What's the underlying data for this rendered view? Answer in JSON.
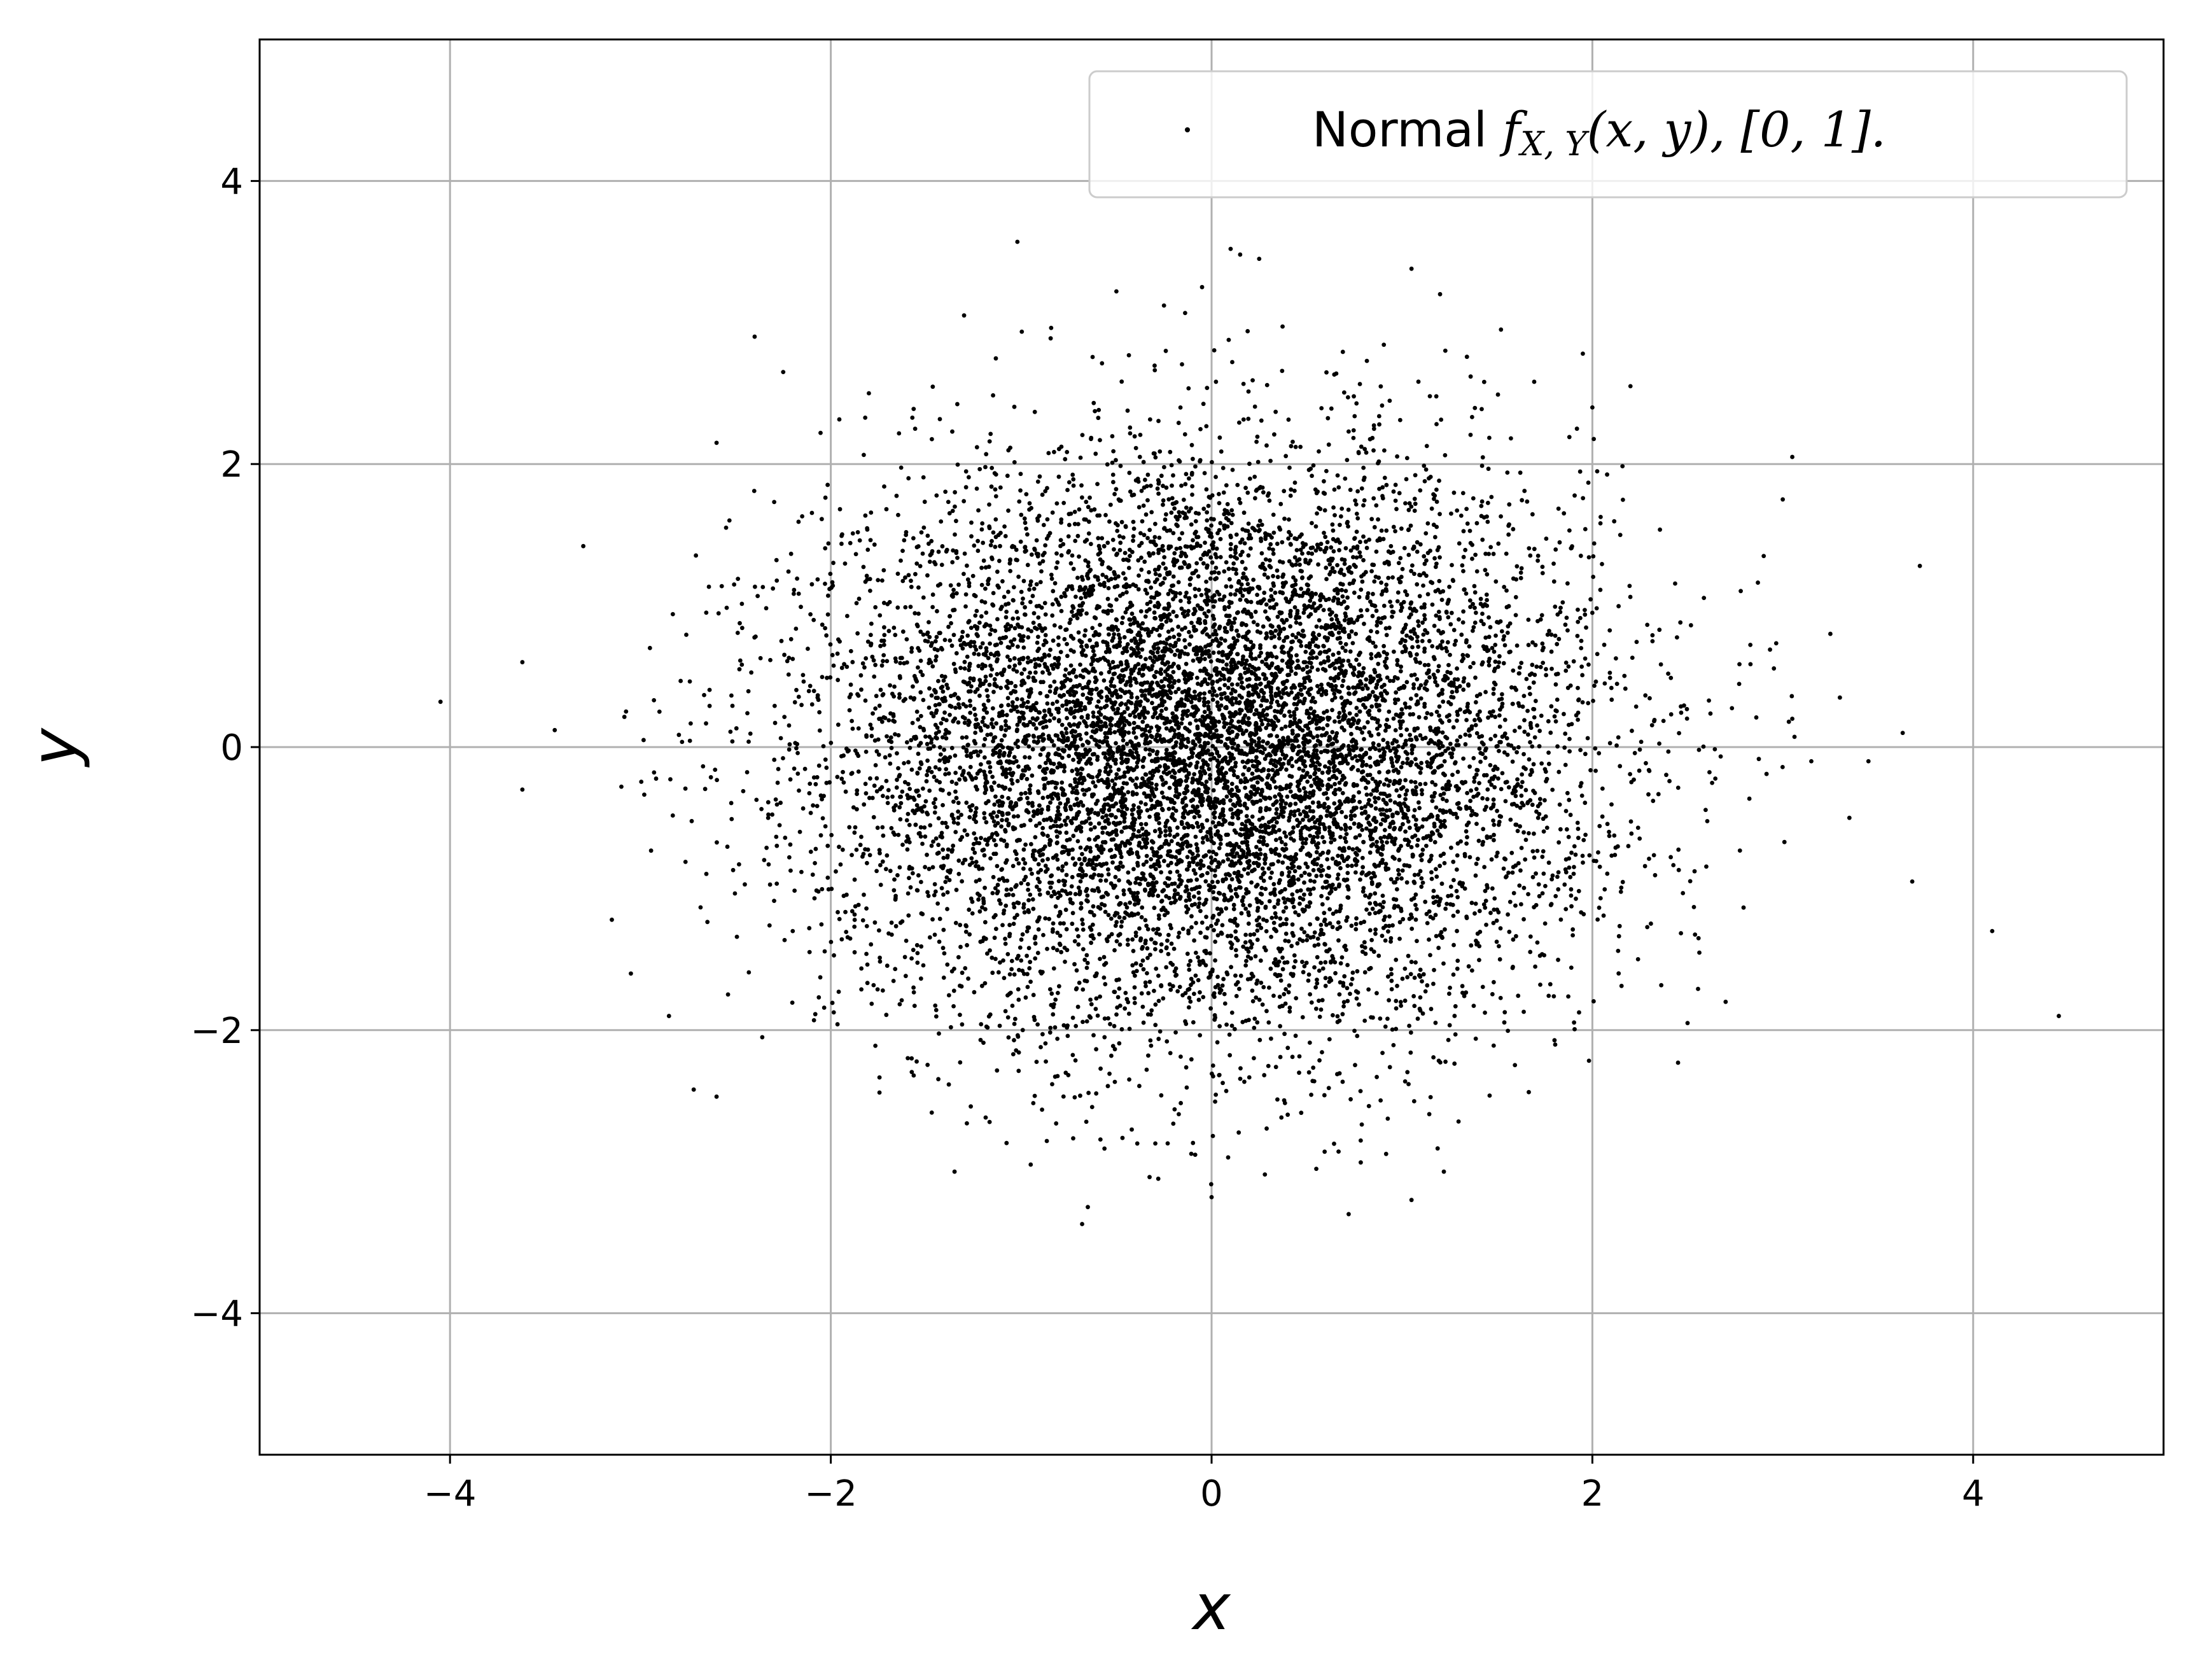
{
  "chart_data": {
    "type": "scatter",
    "title": "",
    "xlabel": "x",
    "ylabel": "y",
    "xlim": [
      -5,
      5
    ],
    "ylim": [
      -5,
      5
    ],
    "xticks": [
      -4,
      -2,
      0,
      2,
      4
    ],
    "yticks": [
      -4,
      -2,
      0,
      2,
      4
    ],
    "grid": true,
    "legend_position": "upper right",
    "series": [
      {
        "name": "Normal f_{X,Y}(x,y), [0,1].",
        "legend_prefix": "Normal ",
        "legend_math_f": "f",
        "legend_math_sub": "X, Y",
        "legend_math_rest": "(x, y), [0, 1].",
        "color": "#000000",
        "distribution": "bivariate normal",
        "mean": [
          0,
          0
        ],
        "std": [
          1,
          1
        ],
        "n_points": 10000,
        "points": [
          [
            -4.05,
            0.32
          ],
          [
            -3.62,
            -0.3
          ],
          [
            -3.62,
            0.6
          ],
          [
            -3.45,
            0.12
          ],
          [
            -3.3,
            1.42
          ],
          [
            -3.15,
            -1.22
          ],
          [
            -3.1,
            -0.28
          ],
          [
            -3.05,
            -1.6
          ],
          [
            -2.95,
            0.7
          ],
          [
            -2.9,
            0.25
          ],
          [
            -2.85,
            -1.9
          ],
          [
            -2.72,
            -2.42
          ],
          [
            -2.6,
            -2.47
          ],
          [
            -2.6,
            2.15
          ],
          [
            -2.55,
            1.55
          ],
          [
            -2.48,
            0.55
          ],
          [
            -2.4,
            2.9
          ],
          [
            -2.36,
            -2.05
          ],
          [
            -2.25,
            2.65
          ],
          [
            -2.2,
            -1.3
          ],
          [
            -1.8,
            2.5
          ],
          [
            -1.35,
            -3.0
          ],
          [
            -1.3,
            3.05
          ],
          [
            -1.02,
            3.57
          ],
          [
            -0.95,
            -2.95
          ],
          [
            -0.68,
            -3.37
          ],
          [
            -0.65,
            -3.25
          ],
          [
            -0.5,
            3.22
          ],
          [
            -0.28,
            -3.05
          ],
          [
            -0.25,
            3.12
          ],
          [
            -0.05,
            3.25
          ],
          [
            0.0,
            -3.18
          ],
          [
            0.1,
            3.52
          ],
          [
            0.15,
            3.48
          ],
          [
            0.25,
            3.45
          ],
          [
            0.28,
            -3.02
          ],
          [
            0.55,
            -2.98
          ],
          [
            0.72,
            -3.3
          ],
          [
            1.05,
            3.38
          ],
          [
            1.05,
            -3.2
          ],
          [
            1.2,
            3.2
          ],
          [
            1.22,
            -3.0
          ],
          [
            1.52,
            2.95
          ],
          [
            1.95,
            2.78
          ],
          [
            2.0,
            2.4
          ],
          [
            2.2,
            2.55
          ],
          [
            2.45,
            -2.23
          ],
          [
            2.5,
            -1.95
          ],
          [
            2.7,
            -1.8
          ],
          [
            2.9,
            1.35
          ],
          [
            3.0,
            1.75
          ],
          [
            3.05,
            2.05
          ],
          [
            3.05,
            0.2
          ],
          [
            3.15,
            -0.1
          ],
          [
            3.25,
            0.8
          ],
          [
            3.3,
            0.35
          ],
          [
            3.35,
            -0.5
          ],
          [
            3.45,
            -0.1
          ],
          [
            3.63,
            0.1
          ],
          [
            3.68,
            -0.95
          ],
          [
            3.72,
            1.28
          ],
          [
            4.1,
            -1.3
          ],
          [
            4.45,
            -1.9
          ]
        ]
      }
    ]
  }
}
